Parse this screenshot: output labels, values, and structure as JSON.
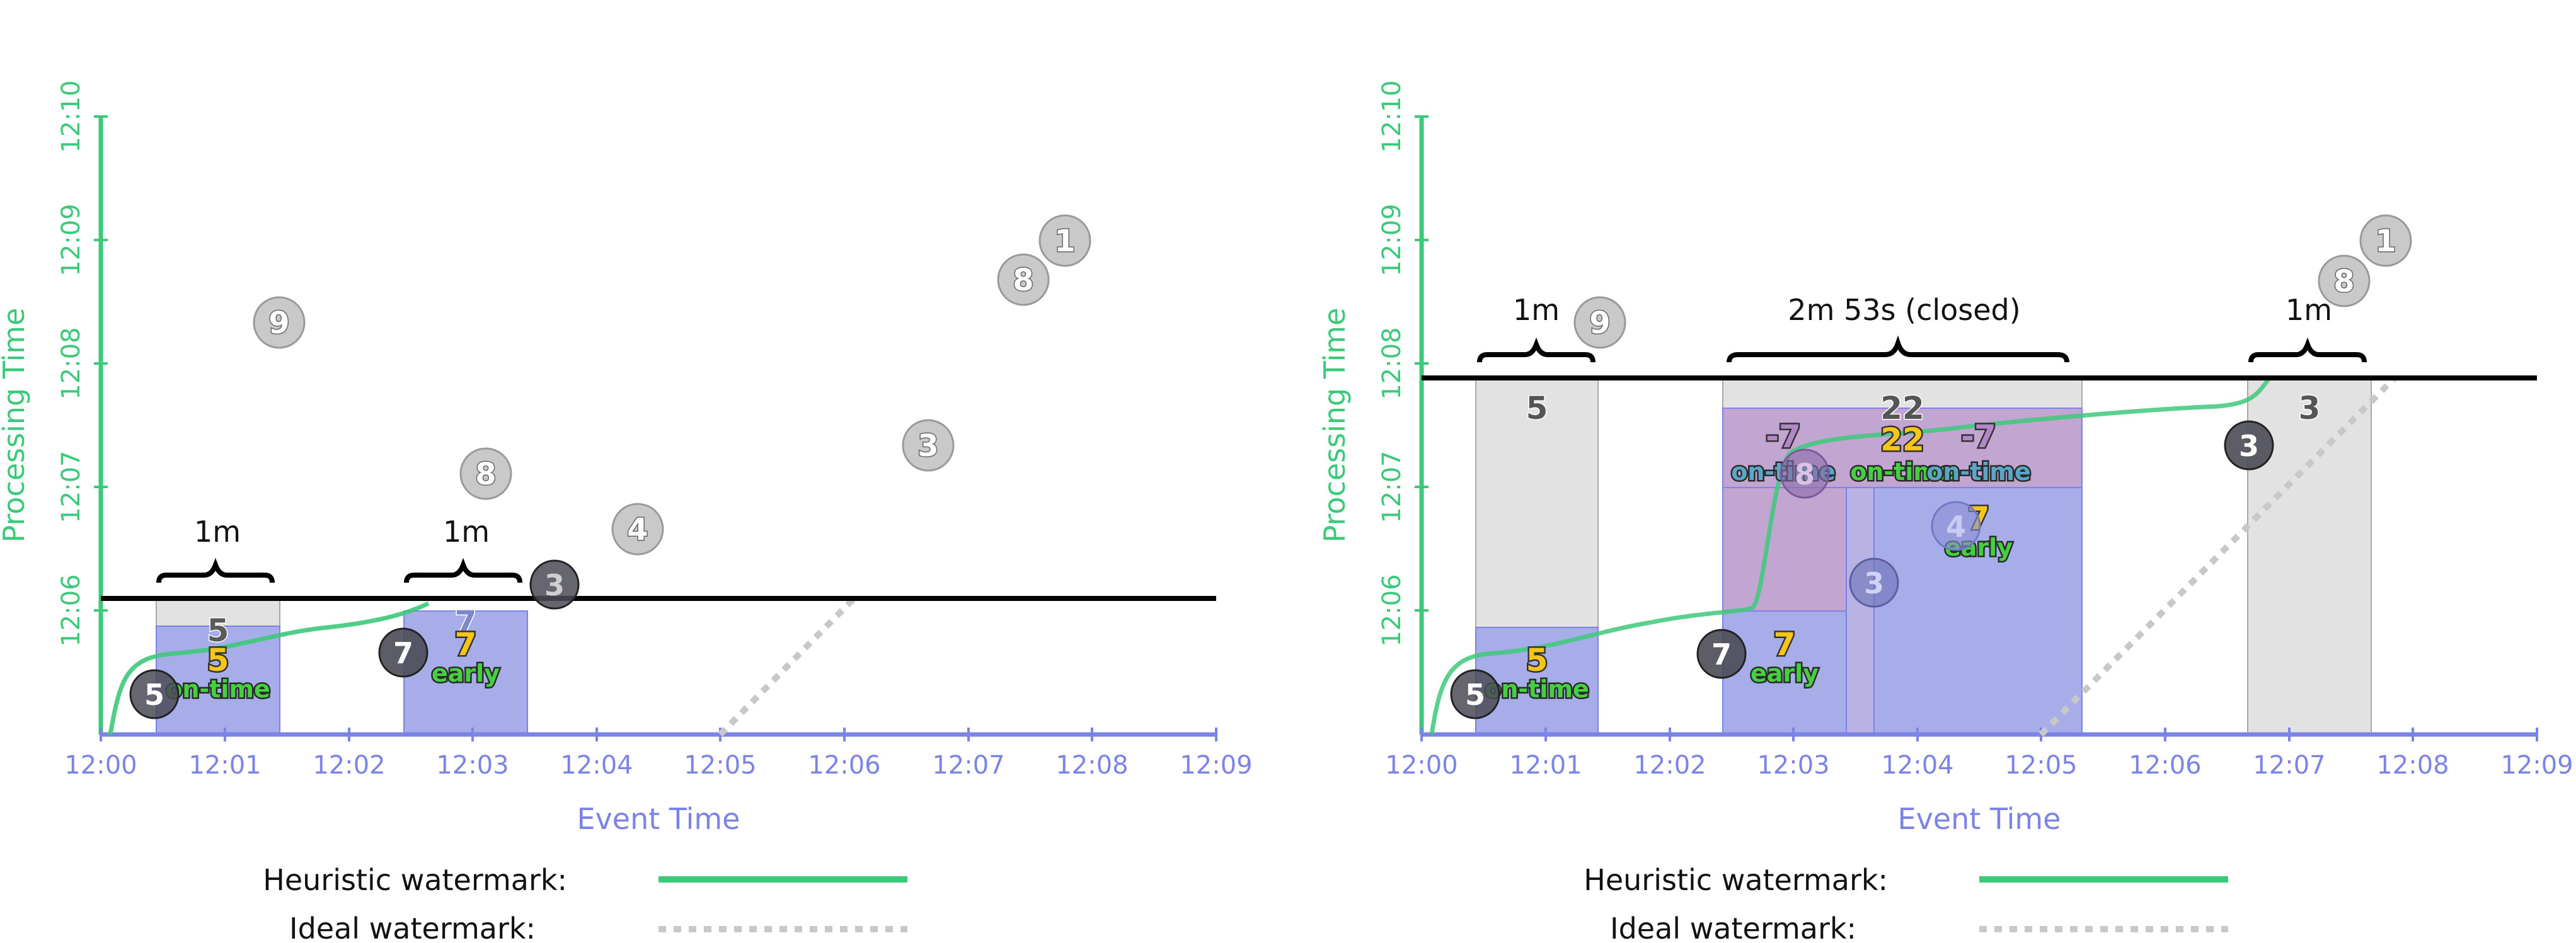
{
  "panels": [
    {
      "id": "left",
      "axes": {
        "ylabel": "Processing Time",
        "xlabel": "Event Time",
        "y_ticks": [
          "12:06",
          "12:07",
          "12:08",
          "12:09",
          "12:10"
        ],
        "x_ticks": [
          "12:00",
          "12:01",
          "12:02",
          "12:03",
          "12:04",
          "12:05",
          "12:06",
          "12:07",
          "12:08",
          "12:09"
        ]
      },
      "windows": [
        {
          "label": "1m",
          "top_value": "5",
          "result_value": "5",
          "result_label": "on-time"
        },
        {
          "label": "1m",
          "top_value": "7",
          "result_value": "7",
          "result_label": "early"
        }
      ],
      "datapoints": [
        {
          "value": "5",
          "state": "processed"
        },
        {
          "value": "7",
          "state": "processed"
        },
        {
          "value": "3",
          "state": "processed"
        },
        {
          "value": "9",
          "state": "pending"
        },
        {
          "value": "8",
          "state": "pending"
        },
        {
          "value": "4",
          "state": "pending"
        },
        {
          "value": "3",
          "state": "pending"
        },
        {
          "value": "8",
          "state": "pending"
        },
        {
          "value": "1",
          "state": "pending"
        }
      ]
    },
    {
      "id": "right",
      "axes": {
        "ylabel": "Processing Time",
        "xlabel": "Event Time",
        "y_ticks": [
          "12:06",
          "12:07",
          "12:08",
          "12:09",
          "12:10"
        ],
        "x_ticks": [
          "12:00",
          "12:01",
          "12:02",
          "12:03",
          "12:04",
          "12:05",
          "12:06",
          "12:07",
          "12:08",
          "12:09"
        ]
      },
      "windows": [
        {
          "label": "1m",
          "top_value": "5",
          "result_value": "5",
          "result_label": "on-time"
        },
        {
          "label": "2m 53s (closed)",
          "top_value": "22",
          "results": [
            {
              "value": "-7",
              "label": "on-time"
            },
            {
              "value": "22",
              "label": "on-time"
            },
            {
              "value": "-7",
              "label": "on-time"
            },
            {
              "value": "7",
              "label": "early"
            },
            {
              "value": "7",
              "label": "early"
            }
          ]
        },
        {
          "label": "1m",
          "top_value": "3"
        }
      ],
      "datapoints": [
        {
          "value": "5",
          "state": "processed"
        },
        {
          "value": "7",
          "state": "processed"
        },
        {
          "value": "3",
          "state": "processed"
        },
        {
          "value": "4",
          "state": "processed"
        },
        {
          "value": "8",
          "state": "processed"
        },
        {
          "value": "3",
          "state": "processed"
        },
        {
          "value": "9",
          "state": "pending"
        },
        {
          "value": "8",
          "state": "pending"
        },
        {
          "value": "1",
          "state": "pending"
        }
      ]
    }
  ],
  "legend": {
    "heuristic_label": "Heuristic watermark:",
    "ideal_label": "Ideal watermark:"
  },
  "colors": {
    "processing_axis": "#3dc97a",
    "event_axis": "#7b84e6",
    "heuristic_watermark": "#3dc97a",
    "ideal_watermark": "#c8c8c8",
    "pane_gray": "#e2e2e2",
    "pane_blue": "#9fa6e4",
    "pane_purple": "#c3a5d2",
    "value_yellow": "#f5c518",
    "label_green": "#45d040"
  }
}
